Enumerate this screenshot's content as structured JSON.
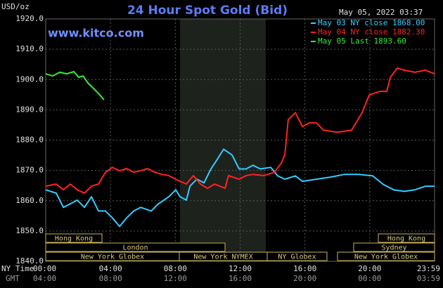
{
  "chart_data": {
    "type": "line",
    "title": "24 Hour Spot Gold (Bid)",
    "site": "www.kitco.com",
    "unit": "USD/oz",
    "timestamp": "May 05, 2022 03:37",
    "ny_time_caption": "NY Time",
    "gmt_caption": "GMT",
    "xlim": [
      0,
      24
    ],
    "ylim": [
      1840,
      1920
    ],
    "grid": true,
    "xticks": [
      {
        "value": 0,
        "label": "00:00"
      },
      {
        "value": 4,
        "label": "04:00"
      },
      {
        "value": 8,
        "label": "08:00"
      },
      {
        "value": 12,
        "label": "12:00"
      },
      {
        "value": 16,
        "label": "16:00"
      },
      {
        "value": 20,
        "label": "20:00"
      },
      {
        "value": 24,
        "label": "23:59"
      }
    ],
    "gmt_labels": [
      "04:00",
      "08:00",
      "12:00",
      "16:00",
      "20:00",
      "00:00",
      "03:59"
    ],
    "yticks": [
      {
        "value": 1840,
        "label": "1840.0"
      },
      {
        "value": 1850,
        "label": "1850.0"
      },
      {
        "value": 1860,
        "label": "1860.0"
      },
      {
        "value": 1870,
        "label": "1870.0"
      },
      {
        "value": 1880,
        "label": "1880.0"
      },
      {
        "value": 1890,
        "label": "1890.0"
      },
      {
        "value": 1900,
        "label": "1900.0"
      },
      {
        "value": 1910,
        "label": "1910.0"
      },
      {
        "value": 1920,
        "label": "1920.0"
      }
    ],
    "sessions": [
      "Hong Kong",
      "Hong Kong",
      "London",
      "Sydney",
      "New York Globex",
      "New York NYMEX",
      "NY Globex",
      "New York Globex"
    ],
    "series": [
      {
        "name": "May 03 NY close 1868.00",
        "color": "#33ccff",
        "x": [
          0,
          0.65,
          1.09,
          1.52,
          1.95,
          2.39,
          2.82,
          3.26,
          3.69,
          4.12,
          4.56,
          4.99,
          5.43,
          5.86,
          6.51,
          6.94,
          7.6,
          8.03,
          8.29,
          8.68,
          8.9,
          9.33,
          9.77,
          10.2,
          10.63,
          10.98,
          11.5,
          11.94,
          12.37,
          12.8,
          13.24,
          13.89,
          14.32,
          14.76,
          15.41,
          15.84,
          16.71,
          17.58,
          18.45,
          19.31,
          20.18,
          20.83,
          21.48,
          22.14,
          22.79,
          23.44,
          24
        ],
        "values": [
          1863.6,
          1862.5,
          1857.8,
          1859.0,
          1860.2,
          1857.8,
          1861.3,
          1856.6,
          1856.6,
          1854.3,
          1851.5,
          1854.3,
          1856.6,
          1857.8,
          1856.6,
          1858.9,
          1861.3,
          1863.6,
          1861.3,
          1860.2,
          1864.8,
          1867.1,
          1865.9,
          1870.5,
          1874.0,
          1877.0,
          1875.1,
          1870.5,
          1870.5,
          1871.7,
          1870.5,
          1871.0,
          1868.2,
          1867.1,
          1868.2,
          1866.4,
          1867.1,
          1867.8,
          1868.7,
          1868.7,
          1868.2,
          1865.4,
          1863.6,
          1863.1,
          1863.6,
          1864.8,
          1864.8
        ]
      },
      {
        "name": "May 04 NY close 1882.30",
        "color": "#ff2222",
        "x": [
          0,
          0.65,
          1.09,
          1.52,
          1.95,
          2.39,
          2.82,
          3.26,
          3.69,
          4.12,
          4.56,
          4.99,
          5.43,
          5.86,
          6.29,
          6.73,
          7.16,
          7.6,
          8.03,
          8.29,
          8.68,
          9.11,
          9.55,
          9.98,
          10.42,
          11.07,
          11.28,
          11.94,
          12.37,
          12.8,
          13.45,
          14.11,
          14.54,
          14.76,
          14.97,
          15.41,
          15.84,
          16.28,
          16.71,
          17.14,
          18.01,
          18.88,
          19.53,
          19.97,
          20.62,
          21.05,
          21.27,
          21.7,
          22.14,
          22.79,
          23.44,
          24
        ],
        "values": [
          1864.8,
          1865.5,
          1863.6,
          1865.5,
          1863.6,
          1862.5,
          1864.8,
          1865.5,
          1869.4,
          1871.0,
          1869.9,
          1870.6,
          1869.4,
          1869.9,
          1870.6,
          1869.4,
          1868.7,
          1868.3,
          1867.1,
          1866.4,
          1865.5,
          1868.3,
          1865.5,
          1864.1,
          1865.5,
          1864.1,
          1868.3,
          1867.1,
          1868.3,
          1868.7,
          1868.3,
          1869.4,
          1872.4,
          1875.2,
          1886.8,
          1889.1,
          1884.5,
          1885.7,
          1885.7,
          1883.3,
          1882.6,
          1883.3,
          1889.1,
          1894.9,
          1896.1,
          1896.1,
          1900.7,
          1903.8,
          1903.1,
          1902.4,
          1903.1,
          1901.9
        ]
      },
      {
        "name": "May 05 Last 1893.60",
        "color": "#33ee33",
        "x": [
          0,
          0.43,
          0.87,
          1.3,
          1.74,
          2.04,
          2.3,
          2.6,
          3.04,
          3.34,
          3.6
        ],
        "values": [
          1901.9,
          1901.2,
          1902.4,
          1901.9,
          1902.6,
          1900.7,
          1901.2,
          1898.9,
          1896.6,
          1894.9,
          1893.3
        ]
      }
    ]
  }
}
